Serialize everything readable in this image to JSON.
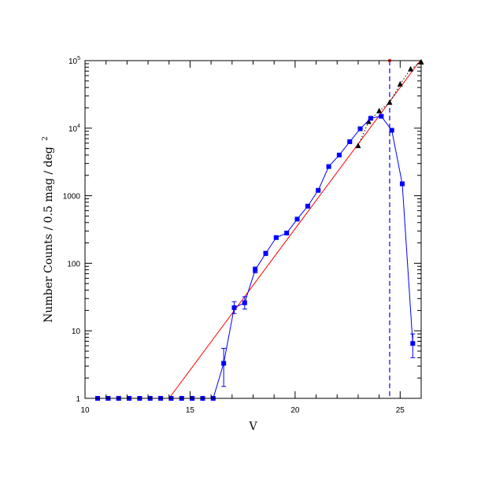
{
  "chart_data": {
    "type": "line",
    "title": "",
    "xlabel": "V",
    "ylabel": "Number Counts / 0.5 mag / deg",
    "ylabel_sup": "2",
    "xlim": [
      10,
      26
    ],
    "ylim": [
      1,
      100000
    ],
    "yscale": "log",
    "grid": false,
    "x_ticks": [
      10,
      15,
      20,
      25
    ],
    "x_tick_labels": [
      "10",
      "15",
      "20",
      "25"
    ],
    "y_ticks": [
      1,
      10,
      100,
      1000,
      10000,
      100000
    ],
    "y_tick_labels": [
      {
        "base": "1",
        "sup": ""
      },
      {
        "base": "10",
        "sup": ""
      },
      {
        "base": "100",
        "sup": ""
      },
      {
        "base": "1000",
        "sup": ""
      },
      {
        "base": "10",
        "sup": "4"
      },
      {
        "base": "10",
        "sup": "5"
      }
    ],
    "colors": {
      "blue": "#0000ff",
      "red": "#ff0000",
      "black": "#000000"
    },
    "series": [
      {
        "style": "blue-squares-line",
        "x": [
          10.6,
          11.1,
          11.6,
          12.1,
          12.6,
          13.1,
          13.6,
          14.1,
          14.6,
          15.1,
          15.6,
          16.1,
          16.6,
          17.1,
          17.6,
          18.1,
          18.6,
          19.1,
          19.6,
          20.1,
          20.6,
          21.1,
          21.6,
          22.1,
          22.6,
          23.1,
          23.6,
          24.1,
          24.6,
          25.1,
          25.6
        ],
        "y": [
          1,
          1,
          1,
          1,
          1,
          1,
          1,
          1,
          1,
          1,
          1,
          1,
          3.3,
          22,
          26,
          80,
          140,
          240,
          280,
          450,
          700,
          1200,
          2700,
          4000,
          6300,
          9800,
          14000,
          15000,
          9300,
          1500,
          6.5
        ],
        "err_low": [
          0,
          0,
          0,
          0,
          0,
          0,
          0,
          0,
          0,
          0,
          0,
          0,
          1.8,
          4,
          5,
          8,
          10,
          12,
          14,
          15,
          20,
          30,
          50,
          60,
          80,
          100,
          150,
          200,
          150,
          50,
          2.5
        ],
        "err_high": [
          0,
          0,
          0,
          0,
          0,
          0,
          0,
          0,
          0,
          0,
          0,
          0,
          2.2,
          5,
          6,
          8,
          10,
          12,
          14,
          15,
          20,
          30,
          50,
          60,
          80,
          100,
          150,
          200,
          150,
          50,
          2.5
        ]
      },
      {
        "style": "black-triangles-dotted",
        "x": [
          23.0,
          23.5,
          24.0,
          24.5,
          25.0,
          25.5,
          26.0
        ],
        "y": [
          5500,
          12500,
          18000,
          24000,
          45000,
          75000,
          95000
        ]
      },
      {
        "style": "red-fit-line",
        "x": [
          14.0,
          25.95
        ],
        "y": [
          1,
          100000
        ]
      }
    ],
    "annotations": [
      {
        "type": "vertical-dashed-line",
        "x": 24.5,
        "color": "#0000ff"
      },
      {
        "type": "marker",
        "x": 24.5,
        "y": 100000,
        "color": "#ff0000"
      }
    ]
  }
}
